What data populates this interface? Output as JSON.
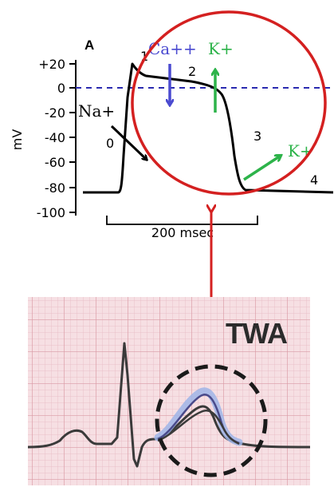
{
  "panel_label": "A",
  "y_axis": {
    "unit": "mV",
    "ticks": [
      "+20",
      "0",
      "-20",
      "-40",
      "-60",
      "-80",
      "-100"
    ]
  },
  "phases": [
    "0",
    "1",
    "2",
    "3",
    "4"
  ],
  "ions": {
    "sodium": "Na+",
    "calcium": "Ca++",
    "potassium_plateau": "K+",
    "potassium_repol": "K+"
  },
  "time_scale": "200 msec",
  "ecg_label": "TWA",
  "colors": {
    "calcium": "#4a4ad0",
    "potassium": "#2db34a",
    "sodium": "#000000",
    "highlight_circle": "#d42020",
    "link_arrow": "#d42020",
    "baseline": "#2b2bb0",
    "ecg_grid_bg": "#f6dfe3"
  }
}
